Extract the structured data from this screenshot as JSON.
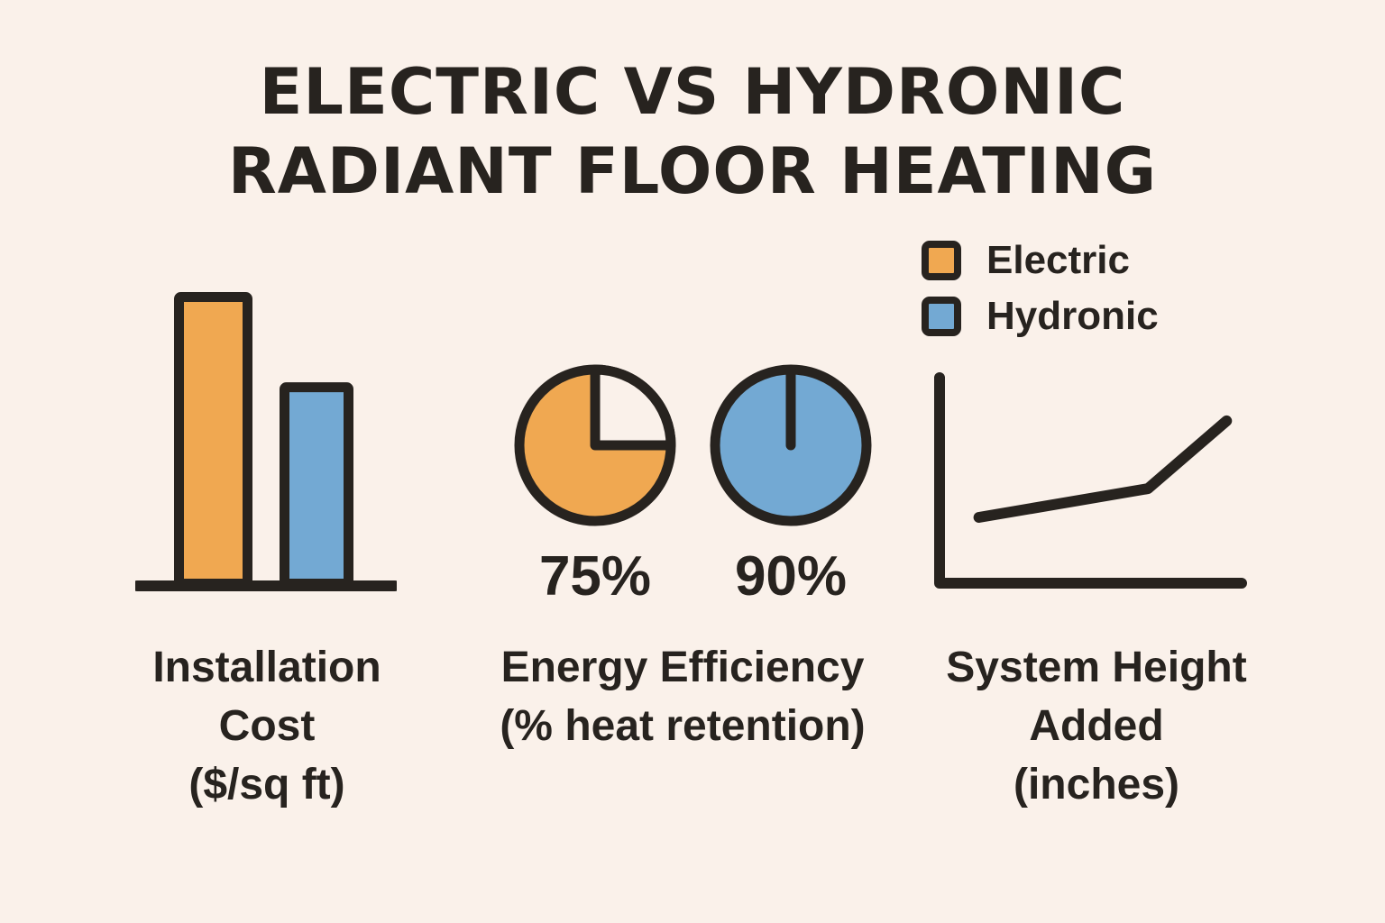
{
  "title": {
    "line1": "ELECTRIC VS HYDRONIC",
    "line2": "RADIANT FLOOR HEATING"
  },
  "legend": {
    "items": [
      {
        "label": "Electric",
        "color": "#F0A851"
      },
      {
        "label": "Hydronic",
        "color": "#73A9D3"
      }
    ]
  },
  "colors": {
    "background": "#FAF1EA",
    "ink": "#27231F",
    "electric": "#F0A851",
    "hydronic": "#73A9D3"
  },
  "chart_data": [
    {
      "type": "bar",
      "caption_lines": [
        "Installation",
        "Cost",
        "($/sq ft)"
      ],
      "categories": [
        "Electric",
        "Hydronic"
      ],
      "values_relative": [
        1.0,
        0.69
      ],
      "ylabel": "$/sq ft",
      "legend_position": "top-right",
      "grid": false
    },
    {
      "type": "pie",
      "caption_lines": [
        "Energy Efficiency",
        "(% heat retention)"
      ],
      "series": [
        {
          "name": "Electric",
          "value_pct": 75,
          "label": "75%",
          "color": "#F0A851",
          "drawn_style": "wedge"
        },
        {
          "name": "Hydronic",
          "value_pct": 90,
          "label": "90%",
          "color": "#73A9D3",
          "drawn_style": "notch"
        }
      ]
    },
    {
      "type": "line",
      "caption_lines": [
        "System Height",
        "Added",
        "(inches)"
      ],
      "series": [
        {
          "name": "height-added",
          "points_normalized": [
            [
              0.13,
              0.32
            ],
            [
              0.69,
              0.46
            ],
            [
              0.95,
              0.79
            ]
          ]
        }
      ],
      "grid": false
    }
  ]
}
